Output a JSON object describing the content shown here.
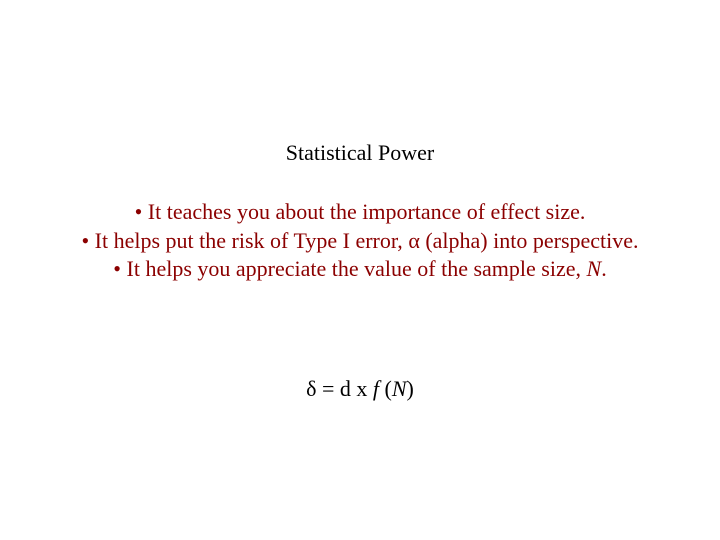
{
  "title": "Statistical Power",
  "bullets": {
    "b1_prefix": "• It teaches you about the importance of effect size.",
    "b2_prefix": "• It helps put the risk of Type I error, ",
    "b2_alpha": "α",
    "b2_suffix": " (alpha) into perspective.",
    "b3_prefix": "• It helps you appreciate the value of the sample size, ",
    "b3_N": "N",
    "b3_suffix": "."
  },
  "formula": {
    "delta": "δ",
    "eq": " = d   x   ",
    "f": "f ",
    "open": "(",
    "N": "N",
    "close": ")"
  },
  "colors": {
    "bullet_color": "#8b0000",
    "text_color": "#000000",
    "background": "#ffffff"
  },
  "typography": {
    "font_family": "Times New Roman",
    "title_fontsize": 22,
    "body_fontsize": 22
  }
}
